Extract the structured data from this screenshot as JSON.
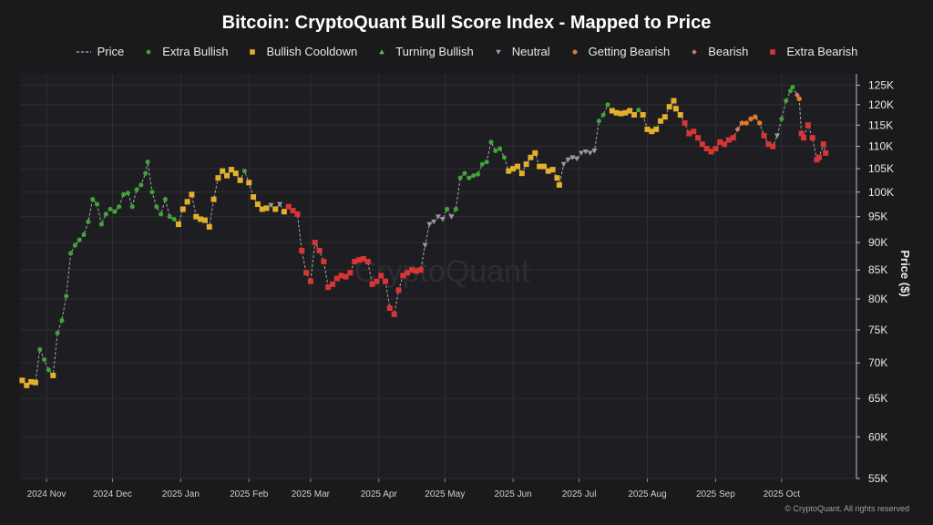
{
  "chart_data": {
    "type": "scatter",
    "title": "Bitcoin: CryptoQuant Bull Score Index - Mapped to Price",
    "ylabel": "Price ($)",
    "xlabel": "",
    "y_scale": "log",
    "ylim": [
      55000,
      128000
    ],
    "xlim": [
      "2024-10-20",
      "2025-11-04"
    ],
    "y_ticks": [
      {
        "value": 55000,
        "label": "55K"
      },
      {
        "value": 60000,
        "label": "60K"
      },
      {
        "value": 65000,
        "label": "65K"
      },
      {
        "value": 70000,
        "label": "70K"
      },
      {
        "value": 75000,
        "label": "75K"
      },
      {
        "value": 80000,
        "label": "80K"
      },
      {
        "value": 85000,
        "label": "85K"
      },
      {
        "value": 90000,
        "label": "90K"
      },
      {
        "value": 95000,
        "label": "95K"
      },
      {
        "value": 100000,
        "label": "100K"
      },
      {
        "value": 105000,
        "label": "105K"
      },
      {
        "value": 110000,
        "label": "110K"
      },
      {
        "value": 115000,
        "label": "115K"
      },
      {
        "value": 120000,
        "label": "120K"
      },
      {
        "value": 125000,
        "label": "125K"
      }
    ],
    "x_ticks": [
      {
        "date": "2024-11-01",
        "label": "2024 Nov"
      },
      {
        "date": "2024-12-01",
        "label": "2024 Dec"
      },
      {
        "date": "2025-01-01",
        "label": "2025 Jan"
      },
      {
        "date": "2025-02-01",
        "label": "2025 Feb"
      },
      {
        "date": "2025-03-01",
        "label": "2025 Mar"
      },
      {
        "date": "2025-04-01",
        "label": "2025 Apr"
      },
      {
        "date": "2025-05-01",
        "label": "2025 May"
      },
      {
        "date": "2025-06-01",
        "label": "2025 Jun"
      },
      {
        "date": "2025-07-01",
        "label": "2025 Jul"
      },
      {
        "date": "2025-08-01",
        "label": "2025 Aug"
      },
      {
        "date": "2025-09-01",
        "label": "2025 Sep"
      },
      {
        "date": "2025-10-01",
        "label": "2025 Oct"
      }
    ],
    "legend_position": "top-center",
    "grid": true,
    "categories": [
      {
        "key": "P",
        "name": "Price",
        "color": "#9a9aa0",
        "marker": "dashed-line"
      },
      {
        "key": "EB",
        "name": "Extra Bullish",
        "color": "#3fa535",
        "marker": "circle"
      },
      {
        "key": "BC",
        "name": "Bullish Cooldown",
        "color": "#e3b02b",
        "marker": "square"
      },
      {
        "key": "TB",
        "name": "Turning Bullish",
        "color": "#65b84c",
        "marker": "triangle-up"
      },
      {
        "key": "N",
        "name": "Neutral",
        "color": "#9a9aa0",
        "marker": "triangle-down"
      },
      {
        "key": "GB",
        "name": "Getting Bearish",
        "color": "#e07a2b",
        "marker": "hexagon"
      },
      {
        "key": "B",
        "name": "Bearish",
        "color": "#d27a6a",
        "marker": "diamond"
      },
      {
        "key": "XB",
        "name": "Extra Bearish",
        "color": "#d93535",
        "marker": "square"
      }
    ],
    "series": [
      [
        "2024-10-21",
        67500,
        "BC"
      ],
      [
        "2024-10-23",
        66800,
        "BC"
      ],
      [
        "2024-10-25",
        67300,
        "BC"
      ],
      [
        "2024-10-27",
        67200,
        "BC"
      ],
      [
        "2024-10-29",
        72000,
        "EB"
      ],
      [
        "2024-10-31",
        70500,
        "EB"
      ],
      [
        "2024-11-02",
        69000,
        "EB"
      ],
      [
        "2024-11-04",
        68200,
        "BC"
      ],
      [
        "2024-11-06",
        74500,
        "EB"
      ],
      [
        "2024-11-08",
        76500,
        "EB"
      ],
      [
        "2024-11-10",
        80500,
        "EB"
      ],
      [
        "2024-11-12",
        88000,
        "EB"
      ],
      [
        "2024-11-14",
        89500,
        "EB"
      ],
      [
        "2024-11-16",
        90500,
        "EB"
      ],
      [
        "2024-11-18",
        91500,
        "EB"
      ],
      [
        "2024-11-20",
        94000,
        "EB"
      ],
      [
        "2024-11-22",
        98500,
        "EB"
      ],
      [
        "2024-11-24",
        97500,
        "EB"
      ],
      [
        "2024-11-26",
        93500,
        "EB"
      ],
      [
        "2024-11-28",
        95500,
        "EB"
      ],
      [
        "2024-11-30",
        96500,
        "EB"
      ],
      [
        "2024-12-02",
        96000,
        "EB"
      ],
      [
        "2024-12-04",
        97000,
        "EB"
      ],
      [
        "2024-12-06",
        99500,
        "EB"
      ],
      [
        "2024-12-08",
        99800,
        "EB"
      ],
      [
        "2024-12-10",
        97000,
        "EB"
      ],
      [
        "2024-12-12",
        100500,
        "EB"
      ],
      [
        "2024-12-14",
        101500,
        "EB"
      ],
      [
        "2024-12-16",
        104000,
        "EB"
      ],
      [
        "2024-12-17",
        106500,
        "EB"
      ],
      [
        "2024-12-19",
        100000,
        "EB"
      ],
      [
        "2024-12-21",
        97000,
        "EB"
      ],
      [
        "2024-12-23",
        95500,
        "EB"
      ],
      [
        "2024-12-25",
        98500,
        "EB"
      ],
      [
        "2024-12-27",
        95000,
        "EB"
      ],
      [
        "2024-12-29",
        94500,
        "EB"
      ],
      [
        "2024-12-31",
        93500,
        "BC"
      ],
      [
        "2025-01-02",
        96500,
        "BC"
      ],
      [
        "2025-01-04",
        98000,
        "BC"
      ],
      [
        "2025-01-06",
        99500,
        "BC"
      ],
      [
        "2025-01-08",
        95000,
        "BC"
      ],
      [
        "2025-01-10",
        94500,
        "BC"
      ],
      [
        "2025-01-12",
        94300,
        "BC"
      ],
      [
        "2025-01-14",
        93000,
        "BC"
      ],
      [
        "2025-01-16",
        98500,
        "BC"
      ],
      [
        "2025-01-18",
        103000,
        "BC"
      ],
      [
        "2025-01-20",
        104500,
        "BC"
      ],
      [
        "2025-01-22",
        103500,
        "BC"
      ],
      [
        "2025-01-24",
        104800,
        "BC"
      ],
      [
        "2025-01-26",
        104000,
        "BC"
      ],
      [
        "2025-01-28",
        102500,
        "BC"
      ],
      [
        "2025-01-30",
        104500,
        "EB"
      ],
      [
        "2025-02-01",
        102000,
        "BC"
      ],
      [
        "2025-02-03",
        99000,
        "BC"
      ],
      [
        "2025-02-05",
        97500,
        "BC"
      ],
      [
        "2025-02-07",
        96500,
        "BC"
      ],
      [
        "2025-02-09",
        96700,
        "BC"
      ],
      [
        "2025-02-11",
        97300,
        "N"
      ],
      [
        "2025-02-13",
        96500,
        "BC"
      ],
      [
        "2025-02-15",
        97500,
        "N"
      ],
      [
        "2025-02-17",
        96000,
        "BC"
      ],
      [
        "2025-02-19",
        97000,
        "XB"
      ],
      [
        "2025-02-21",
        96200,
        "XB"
      ],
      [
        "2025-02-23",
        95500,
        "XB"
      ],
      [
        "2025-02-25",
        88500,
        "XB"
      ],
      [
        "2025-02-27",
        84500,
        "XB"
      ],
      [
        "2025-03-01",
        83000,
        "XB"
      ],
      [
        "2025-03-03",
        90000,
        "XB"
      ],
      [
        "2025-03-05",
        88500,
        "XB"
      ],
      [
        "2025-03-07",
        86500,
        "XB"
      ],
      [
        "2025-03-09",
        82000,
        "XB"
      ],
      [
        "2025-03-11",
        82500,
        "XB"
      ],
      [
        "2025-03-13",
        83500,
        "XB"
      ],
      [
        "2025-03-15",
        84000,
        "XB"
      ],
      [
        "2025-03-17",
        83800,
        "XB"
      ],
      [
        "2025-03-19",
        84500,
        "XB"
      ],
      [
        "2025-03-21",
        86500,
        "XB"
      ],
      [
        "2025-03-23",
        86800,
        "XB"
      ],
      [
        "2025-03-25",
        87000,
        "XB"
      ],
      [
        "2025-03-27",
        86500,
        "XB"
      ],
      [
        "2025-03-29",
        82500,
        "XB"
      ],
      [
        "2025-03-31",
        83000,
        "XB"
      ],
      [
        "2025-04-02",
        84000,
        "XB"
      ],
      [
        "2025-04-04",
        83000,
        "XB"
      ],
      [
        "2025-04-06",
        78500,
        "XB"
      ],
      [
        "2025-04-08",
        77500,
        "XB"
      ],
      [
        "2025-04-10",
        81500,
        "XB"
      ],
      [
        "2025-04-12",
        84000,
        "XB"
      ],
      [
        "2025-04-14",
        84500,
        "XB"
      ],
      [
        "2025-04-16",
        85000,
        "XB"
      ],
      [
        "2025-04-18",
        84800,
        "XB"
      ],
      [
        "2025-04-20",
        85000,
        "XB"
      ],
      [
        "2025-04-22",
        89500,
        "N"
      ],
      [
        "2025-04-24",
        93500,
        "N"
      ],
      [
        "2025-04-26",
        94000,
        "N"
      ],
      [
        "2025-04-28",
        95000,
        "N"
      ],
      [
        "2025-04-30",
        94500,
        "N"
      ],
      [
        "2025-05-02",
        96500,
        "EB"
      ],
      [
        "2025-05-04",
        95000,
        "N"
      ],
      [
        "2025-05-06",
        96500,
        "EB"
      ],
      [
        "2025-05-08",
        103000,
        "EB"
      ],
      [
        "2025-05-10",
        104000,
        "EB"
      ],
      [
        "2025-05-12",
        103000,
        "EB"
      ],
      [
        "2025-05-14",
        103500,
        "EB"
      ],
      [
        "2025-05-16",
        103800,
        "EB"
      ],
      [
        "2025-05-18",
        106000,
        "EB"
      ],
      [
        "2025-05-20",
        106500,
        "EB"
      ],
      [
        "2025-05-22",
        111000,
        "EB"
      ],
      [
        "2025-05-24",
        109000,
        "EB"
      ],
      [
        "2025-05-26",
        109500,
        "EB"
      ],
      [
        "2025-05-28",
        107500,
        "EB"
      ],
      [
        "2025-05-30",
        104500,
        "BC"
      ],
      [
        "2025-06-01",
        105000,
        "BC"
      ],
      [
        "2025-06-03",
        105500,
        "BC"
      ],
      [
        "2025-06-05",
        104000,
        "BC"
      ],
      [
        "2025-06-07",
        106000,
        "BC"
      ],
      [
        "2025-06-09",
        107500,
        "BC"
      ],
      [
        "2025-06-11",
        108500,
        "BC"
      ],
      [
        "2025-06-13",
        105500,
        "BC"
      ],
      [
        "2025-06-15",
        105500,
        "BC"
      ],
      [
        "2025-06-17",
        104500,
        "BC"
      ],
      [
        "2025-06-19",
        104800,
        "BC"
      ],
      [
        "2025-06-21",
        103000,
        "BC"
      ],
      [
        "2025-06-22",
        101500,
        "BC"
      ],
      [
        "2025-06-24",
        106000,
        "N"
      ],
      [
        "2025-06-26",
        107000,
        "N"
      ],
      [
        "2025-06-28",
        107500,
        "N"
      ],
      [
        "2025-06-30",
        107200,
        "N"
      ],
      [
        "2025-07-02",
        108500,
        "N"
      ],
      [
        "2025-07-04",
        108800,
        "N"
      ],
      [
        "2025-07-06",
        108500,
        "N"
      ],
      [
        "2025-07-08",
        109000,
        "N"
      ],
      [
        "2025-07-10",
        116000,
        "EB"
      ],
      [
        "2025-07-12",
        117500,
        "EB"
      ],
      [
        "2025-07-14",
        120000,
        "EB"
      ],
      [
        "2025-07-16",
        118500,
        "BC"
      ],
      [
        "2025-07-18",
        118000,
        "BC"
      ],
      [
        "2025-07-20",
        117800,
        "BC"
      ],
      [
        "2025-07-22",
        118000,
        "BC"
      ],
      [
        "2025-07-24",
        118500,
        "BC"
      ],
      [
        "2025-07-26",
        117500,
        "BC"
      ],
      [
        "2025-07-28",
        118700,
        "EB"
      ],
      [
        "2025-07-30",
        117500,
        "BC"
      ],
      [
        "2025-08-01",
        114000,
        "BC"
      ],
      [
        "2025-08-03",
        113500,
        "BC"
      ],
      [
        "2025-08-05",
        114000,
        "BC"
      ],
      [
        "2025-08-07",
        116000,
        "BC"
      ],
      [
        "2025-08-09",
        117000,
        "BC"
      ],
      [
        "2025-08-11",
        119500,
        "BC"
      ],
      [
        "2025-08-13",
        121000,
        "BC"
      ],
      [
        "2025-08-14",
        119000,
        "BC"
      ],
      [
        "2025-08-16",
        117500,
        "BC"
      ],
      [
        "2025-08-18",
        115500,
        "XB"
      ],
      [
        "2025-08-20",
        113000,
        "XB"
      ],
      [
        "2025-08-22",
        113500,
        "XB"
      ],
      [
        "2025-08-24",
        112000,
        "XB"
      ],
      [
        "2025-08-26",
        110500,
        "XB"
      ],
      [
        "2025-08-28",
        109500,
        "XB"
      ],
      [
        "2025-08-30",
        108800,
        "XB"
      ],
      [
        "2025-09-01",
        109500,
        "XB"
      ],
      [
        "2025-09-03",
        111000,
        "XB"
      ],
      [
        "2025-09-05",
        110500,
        "XB"
      ],
      [
        "2025-09-07",
        111500,
        "XB"
      ],
      [
        "2025-09-09",
        112000,
        "XB"
      ],
      [
        "2025-09-11",
        114000,
        "B"
      ],
      [
        "2025-09-13",
        115500,
        "GB"
      ],
      [
        "2025-09-15",
        115500,
        "GB"
      ],
      [
        "2025-09-17",
        116500,
        "GB"
      ],
      [
        "2025-09-19",
        117000,
        "GB"
      ],
      [
        "2025-09-21",
        115500,
        "GB"
      ],
      [
        "2025-09-23",
        112500,
        "XB"
      ],
      [
        "2025-09-25",
        110500,
        "XB"
      ],
      [
        "2025-09-27",
        110000,
        "XB"
      ],
      [
        "2025-09-29",
        112500,
        "N"
      ],
      [
        "2025-10-01",
        116500,
        "EB"
      ],
      [
        "2025-10-03",
        121000,
        "EB"
      ],
      [
        "2025-10-05",
        123500,
        "EB"
      ],
      [
        "2025-10-06",
        124500,
        "EB"
      ],
      [
        "2025-10-08",
        122500,
        "B"
      ],
      [
        "2025-10-09",
        121500,
        "GB"
      ],
      [
        "2025-10-10",
        113000,
        "XB"
      ],
      [
        "2025-10-11",
        112000,
        "XB"
      ],
      [
        "2025-10-13",
        115000,
        "XB"
      ],
      [
        "2025-10-15",
        112000,
        "XB"
      ],
      [
        "2025-10-17",
        107000,
        "XB"
      ],
      [
        "2025-10-18",
        107500,
        "XB"
      ],
      [
        "2025-10-20",
        110500,
        "XB"
      ],
      [
        "2025-10-21",
        108500,
        "XB"
      ]
    ]
  },
  "watermark": "CryptoQuant",
  "footer": "© CryptoQuant. All rights reserved"
}
